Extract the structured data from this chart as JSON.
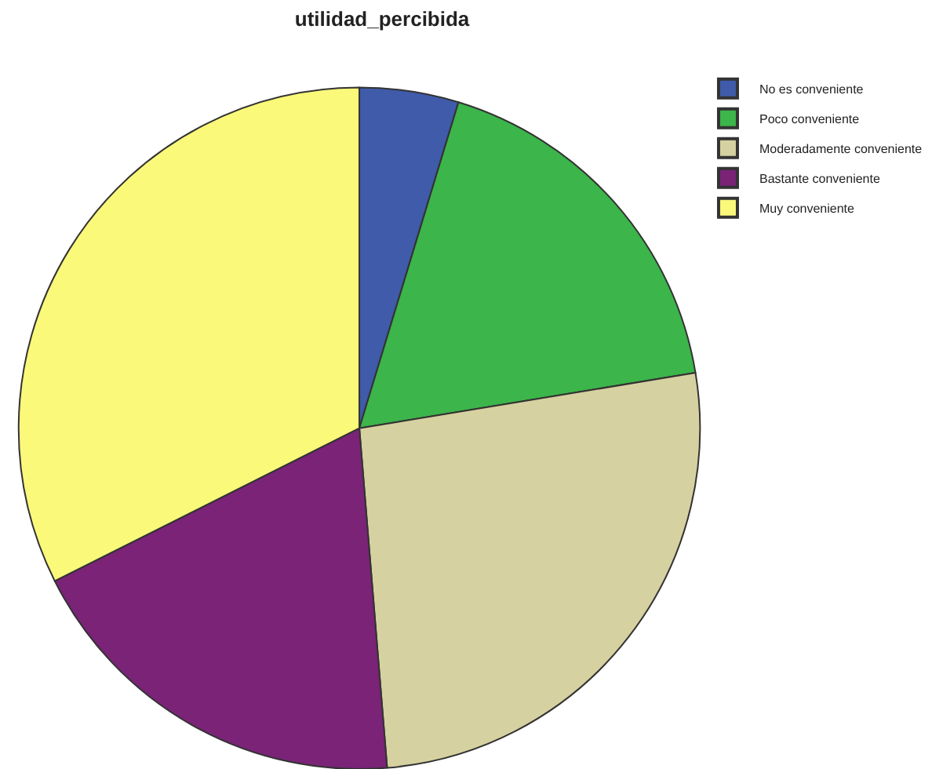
{
  "chart_data": {
    "type": "pie",
    "title": "utilidad_percibida",
    "categories": [
      "No es conveniente",
      "Poco conveniente",
      "Moderadamente conveniente",
      "Bastante conveniente",
      "Muy conveniente"
    ],
    "values": [
      4.7,
      17.7,
      26.3,
      18.9,
      32.4
    ],
    "colors": [
      "#3f5ba9",
      "#3cb54a",
      "#d6d1a0",
      "#7a2377",
      "#fbf97a"
    ],
    "legend": "top right"
  }
}
